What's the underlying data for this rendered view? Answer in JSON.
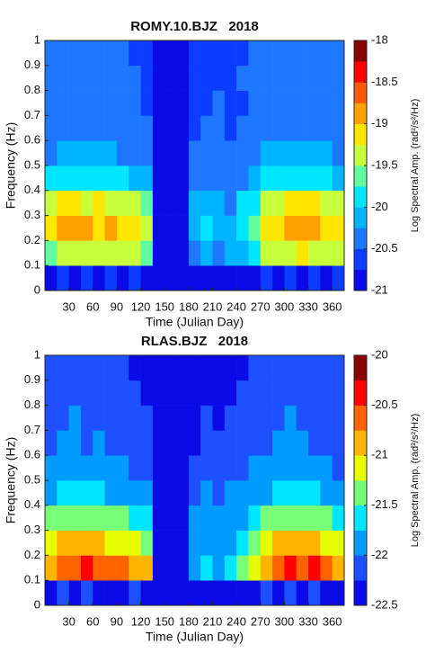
{
  "chart_data": [
    {
      "type": "heatmap",
      "title": "ROMY.10.BJZ   2018",
      "xlabel": "Time (Julian Day)",
      "ylabel": "Frequency (Hz)",
      "x_bins": [
        0,
        15,
        30,
        45,
        60,
        75,
        90,
        105,
        120,
        135,
        150,
        165,
        180,
        195,
        210,
        225,
        240,
        255,
        270,
        285,
        300,
        315,
        330,
        345,
        360,
        375
      ],
      "y_bins": [
        0,
        0.1,
        0.2,
        0.3,
        0.4,
        0.5,
        0.6,
        0.7,
        0.8,
        0.9,
        1
      ],
      "z": [
        [
          -20.8,
          -20.7,
          -20.8,
          -20.7,
          -20.8,
          -20.7,
          -20.8,
          -20.7,
          -20.8,
          -21,
          -21,
          -21,
          -20.8,
          -20.9,
          -20.8,
          -20.9,
          -20.8,
          -20.8,
          -20.7,
          -20.8,
          -20.7,
          -20.8,
          -20.7,
          -20.8,
          -20.7
        ],
        [
          -19.6,
          -19.4,
          -19.3,
          -19.4,
          -19.3,
          -19.4,
          -19.5,
          -19.4,
          -19.6,
          -21,
          -21,
          -21,
          -20.3,
          -20.2,
          -20.3,
          -20.2,
          -20.1,
          -19.8,
          -19.5,
          -19.4,
          -19.3,
          -19.2,
          -19.3,
          -19.4,
          -19.5
        ],
        [
          -19.2,
          -19.0,
          -18.9,
          -19.0,
          -19.1,
          -19.0,
          -19.1,
          -19.2,
          -19.4,
          -21,
          -21,
          -21,
          -20.1,
          -20.0,
          -20.1,
          -20.2,
          -19.9,
          -19.6,
          -19.2,
          -19.1,
          -19.0,
          -18.9,
          -19.0,
          -19.1,
          -19.2
        ],
        [
          -19.4,
          -19.2,
          -19.2,
          -19.3,
          -19.2,
          -19.3,
          -19.4,
          -19.4,
          -19.6,
          -21,
          -21,
          -21,
          -20.2,
          -20.1,
          -20.2,
          -20.3,
          -20.0,
          -19.8,
          -19.4,
          -19.3,
          -19.2,
          -19.1,
          -19.2,
          -19.3,
          -19.5
        ],
        [
          -20.0,
          -19.9,
          -19.8,
          -19.9,
          -19.9,
          -20.0,
          -20.0,
          -20.1,
          -20.2,
          -21,
          -21,
          -21,
          -20.4,
          -20.3,
          -20.3,
          -20.4,
          -20.3,
          -20.1,
          -19.9,
          -19.9,
          -19.8,
          -19.8,
          -19.9,
          -20.0,
          -20.1
        ],
        [
          -20.3,
          -20.2,
          -20.1,
          -20.2,
          -20.2,
          -20.2,
          -20.3,
          -20.3,
          -20.4,
          -21,
          -21,
          -21,
          -20.5,
          -20.4,
          -20.4,
          -20.5,
          -20.4,
          -20.3,
          -20.2,
          -20.2,
          -20.1,
          -20.1,
          -20.2,
          -20.2,
          -20.3
        ],
        [
          -20.4,
          -20.3,
          -20.3,
          -20.4,
          -20.3,
          -20.4,
          -20.4,
          -20.5,
          -20.5,
          -21,
          -21,
          -21,
          -20.6,
          -20.5,
          -20.5,
          -20.6,
          -20.5,
          -20.4,
          -20.4,
          -20.3,
          -20.3,
          -20.3,
          -20.4,
          -20.4,
          -20.4
        ],
        [
          -20.5,
          -20.4,
          -20.4,
          -20.4,
          -20.4,
          -20.5,
          -20.5,
          -20.5,
          -20.6,
          -21,
          -21,
          -21,
          -20.6,
          -20.6,
          -20.5,
          -20.6,
          -20.6,
          -20.5,
          -20.5,
          -20.4,
          -20.4,
          -20.4,
          -20.4,
          -20.5,
          -20.5
        ],
        [
          -20.5,
          -20.4,
          -20.5,
          -20.4,
          -20.5,
          -20.5,
          -20.4,
          -20.5,
          -20.6,
          -21,
          -21,
          -21,
          -20.6,
          -20.6,
          -20.6,
          -20.6,
          -20.5,
          -20.5,
          -20.4,
          -20.4,
          -20.5,
          -20.4,
          -20.4,
          -20.5,
          -20.4
        ],
        [
          -20.4,
          -20.5,
          -20.4,
          -20.5,
          -20.4,
          -20.5,
          -20.5,
          -20.6,
          -20.6,
          -21,
          -21,
          -21,
          -20.7,
          -20.6,
          -20.6,
          -20.7,
          -20.6,
          -20.5,
          -20.5,
          -20.4,
          -20.4,
          -20.5,
          -20.4,
          -20.5,
          -20.5
        ]
      ],
      "xlim": [
        0,
        375
      ],
      "ylim": [
        0,
        1
      ],
      "xticks": [
        30,
        60,
        90,
        120,
        150,
        180,
        210,
        240,
        270,
        300,
        330,
        360
      ],
      "yticks": [
        0,
        0.1,
        0.2,
        0.3,
        0.4,
        0.5,
        0.6,
        0.7,
        0.8,
        0.9,
        1
      ],
      "colorbar": {
        "label": "Log Spectral Amp. (rad²/s²/Hz)",
        "lim": [
          -21,
          -18
        ],
        "ticks": [
          -21,
          -20.5,
          -20,
          -19.5,
          -19,
          -18.5,
          -18
        ],
        "colors": [
          "#0a0ae6",
          "#0b3cff",
          "#1e78ff",
          "#00b4ff",
          "#00e6ff",
          "#5fffa0",
          "#c8ff3c",
          "#ffe600",
          "#ffa000",
          "#ff5a00",
          "#ff0000",
          "#8b0000"
        ]
      }
    },
    {
      "type": "heatmap",
      "title": "RLAS.BJZ   2018",
      "xlabel": "Time (Julian Day)",
      "ylabel": "Frequency (Hz)",
      "x_bins": [
        0,
        15,
        30,
        45,
        60,
        75,
        90,
        105,
        120,
        135,
        150,
        165,
        180,
        195,
        210,
        225,
        240,
        255,
        270,
        285,
        300,
        315,
        330,
        345,
        360,
        375
      ],
      "y_bins": [
        0,
        0.1,
        0.2,
        0.3,
        0.4,
        0.5,
        0.6,
        0.7,
        0.8,
        0.9,
        1
      ],
      "z": [
        [
          -22.3,
          -22.2,
          -22.3,
          -22.2,
          -22.3,
          -22.3,
          -22.3,
          -22.2,
          -22.3,
          -22.5,
          -22.5,
          -22.5,
          -22.3,
          -22.4,
          -22.3,
          -22.4,
          -22.3,
          -22.3,
          -22.2,
          -22.3,
          -22.2,
          -22.3,
          -22.2,
          -22.3,
          -22.3
        ],
        [
          -20.8,
          -20.6,
          -20.6,
          -20.5,
          -20.6,
          -20.7,
          -20.6,
          -20.8,
          -21.0,
          -22.5,
          -22.5,
          -22.5,
          -21.8,
          -21.7,
          -21.8,
          -21.6,
          -21.5,
          -21.2,
          -20.8,
          -20.6,
          -20.5,
          -20.6,
          -20.5,
          -20.7,
          -20.8
        ],
        [
          -21.1,
          -21.0,
          -21.0,
          -20.9,
          -21.0,
          -21.1,
          -21.1,
          -21.2,
          -21.3,
          -22.5,
          -22.5,
          -22.5,
          -21.9,
          -21.8,
          -21.9,
          -21.8,
          -21.7,
          -21.4,
          -21.1,
          -21.0,
          -20.9,
          -21.0,
          -20.9,
          -21.1,
          -21.2
        ],
        [
          -21.5,
          -21.4,
          -21.4,
          -21.4,
          -21.4,
          -21.5,
          -21.5,
          -21.6,
          -21.7,
          -22.5,
          -22.5,
          -22.5,
          -22.0,
          -21.9,
          -22.0,
          -21.9,
          -21.9,
          -21.7,
          -21.5,
          -21.4,
          -21.4,
          -21.4,
          -21.4,
          -21.5,
          -21.6
        ],
        [
          -21.8,
          -21.7,
          -21.7,
          -21.7,
          -21.7,
          -21.8,
          -21.8,
          -21.9,
          -22.0,
          -22.5,
          -22.5,
          -22.5,
          -22.1,
          -22.0,
          -22.1,
          -22.0,
          -22.0,
          -21.9,
          -21.8,
          -21.7,
          -21.7,
          -21.7,
          -21.7,
          -21.8,
          -21.9
        ],
        [
          -22.0,
          -21.9,
          -21.9,
          -22.0,
          -21.9,
          -22.0,
          -22.0,
          -22.1,
          -22.1,
          -22.5,
          -22.5,
          -22.5,
          -22.2,
          -22.1,
          -22.2,
          -22.1,
          -22.1,
          -22.0,
          -22.0,
          -21.9,
          -21.9,
          -21.9,
          -22.0,
          -22.0,
          -22.1
        ],
        [
          -22.1,
          -22.0,
          -22.0,
          -22.1,
          -22.0,
          -22.1,
          -22.1,
          -22.2,
          -22.2,
          -22.5,
          -22.5,
          -22.5,
          -22.3,
          -22.2,
          -22.2,
          -22.2,
          -22.2,
          -22.1,
          -22.1,
          -22.0,
          -22.0,
          -22.0,
          -22.1,
          -22.1,
          -22.1
        ],
        [
          -22.1,
          -22.1,
          -22.0,
          -22.1,
          -22.1,
          -22.1,
          -22.2,
          -22.2,
          -22.2,
          -22.5,
          -22.5,
          -22.5,
          -22.3,
          -22.2,
          -22.3,
          -22.2,
          -22.2,
          -22.2,
          -22.1,
          -22.1,
          -22.0,
          -22.1,
          -22.1,
          -22.1,
          -22.2
        ],
        [
          -22.2,
          -22.1,
          -22.1,
          -22.1,
          -22.1,
          -22.2,
          -22.2,
          -22.2,
          -22.3,
          -22.5,
          -22.5,
          -22.5,
          -22.3,
          -22.3,
          -22.3,
          -22.3,
          -22.2,
          -22.2,
          -22.2,
          -22.1,
          -22.1,
          -22.1,
          -22.1,
          -22.2,
          -22.2
        ],
        [
          -22.2,
          -22.2,
          -22.1,
          -22.2,
          -22.2,
          -22.2,
          -22.2,
          -22.3,
          -22.3,
          -22.5,
          -22.5,
          -22.5,
          -22.4,
          -22.3,
          -22.3,
          -22.3,
          -22.3,
          -22.2,
          -22.2,
          -22.2,
          -22.1,
          -22.2,
          -22.2,
          -22.2,
          -22.2
        ]
      ],
      "xlim": [
        0,
        375
      ],
      "ylim": [
        0,
        1
      ],
      "xticks": [
        30,
        60,
        90,
        120,
        150,
        180,
        210,
        240,
        270,
        300,
        330,
        360
      ],
      "yticks": [
        0,
        0.1,
        0.2,
        0.3,
        0.4,
        0.5,
        0.6,
        0.7,
        0.8,
        0.9,
        1
      ],
      "colorbar": {
        "label": "Log Spectral Amp. (rad²/s²/Hz)",
        "lim": [
          -22.5,
          -20
        ],
        "ticks": [
          -22.5,
          -22,
          -21.5,
          -21,
          -20.5,
          -20
        ],
        "colors": [
          "#0a0ae6",
          "#1e50ff",
          "#009bff",
          "#00e6ff",
          "#78ff78",
          "#e6ff00",
          "#ffb400",
          "#ff6400",
          "#ff0000",
          "#8b0000"
        ]
      }
    }
  ]
}
